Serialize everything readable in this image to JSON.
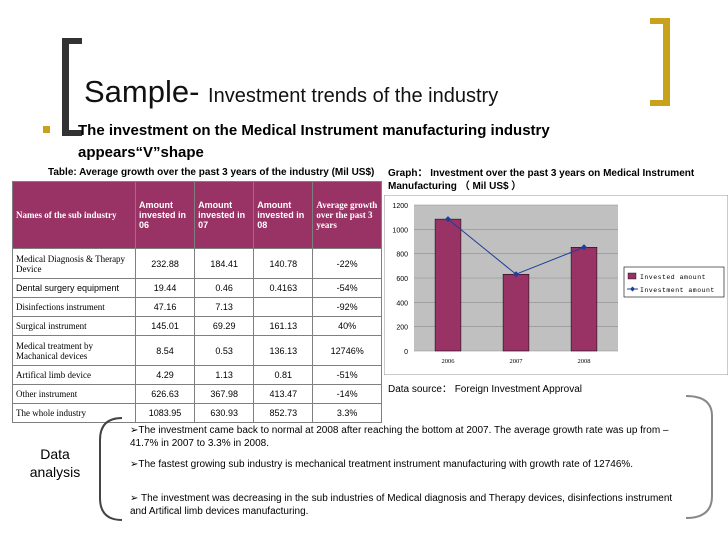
{
  "slide": {
    "title_main": "Sample- ",
    "title_sub": "Investment trends of the industry",
    "bullet": "The investment on the Medical Instrument manufacturing industry appears“V”shape"
  },
  "table": {
    "caption": "Table: Average growth over the past 3 years of the industry (Mil US$)",
    "headers": [
      "Names of the sub industry",
      "Amount invested in 06",
      "Amount invested in 07",
      "Amount invested in 08",
      "Average growth over the past 3 years"
    ],
    "rows": [
      [
        "Medical Diagnosis & Therapy Device",
        "232.88",
        "184.41",
        "140.78",
        "-22%"
      ],
      [
        "Dental surgery equipment",
        "19.44",
        "0.46",
        "0.4163",
        "-54%"
      ],
      [
        "Disinfections instrument",
        "47.16",
        "7.13",
        "",
        "-92%"
      ],
      [
        "Surgical instrument",
        "145.01",
        "69.29",
        "161.13",
        "40%"
      ],
      [
        "Medical treatment by Machanical devices",
        "8.54",
        "0.53",
        "136.13",
        "12746%"
      ],
      [
        "Artifical limb device",
        "4.29",
        "1.13",
        "0.81",
        "-51%"
      ],
      [
        "Other instrument",
        "626.63",
        "367.98",
        "413.47",
        "-14%"
      ],
      [
        "The whole industry",
        "1083.95",
        "630.93",
        "852.73",
        "3.3%"
      ]
    ]
  },
  "graph": {
    "caption": "Graph： Investment over the past 3 years on Medical Instrument Manufacturing （ Mil US$ ）",
    "source": "Data source： Foreign Investment Approval"
  },
  "chart_data": {
    "type": "bar",
    "categories": [
      "2006",
      "2007",
      "2008"
    ],
    "series": [
      {
        "name": "Invested amount",
        "type": "bar",
        "color": "#993366",
        "values": [
          1083.95,
          630.93,
          852.73
        ]
      },
      {
        "name": "Investment amount",
        "type": "line",
        "color": "#1f3d99",
        "values": [
          1083.95,
          630.93,
          852.73
        ]
      }
    ],
    "ylim": [
      0,
      1200
    ],
    "yticks": [
      "0",
      "200",
      "400",
      "600",
      "800",
      "1000",
      "1200"
    ],
    "grid": true,
    "legend": "right"
  },
  "analysis": {
    "label": "Data analysis",
    "items": [
      "The investment came back to normal at 2008 after reaching the bottom at 2007. The average growth rate was up from –41.7% in 2007 to 3.3% in 2008.",
      "The fastest growing sub industry is mechanical treatment instrument manufacturing with growth rate of 12746%.",
      " The investment was decreasing in the sub industries of Medical diagnosis and Therapy devices, disinfections instrument and Artifical limb devices manufacturing."
    ],
    "marker": "➢"
  }
}
